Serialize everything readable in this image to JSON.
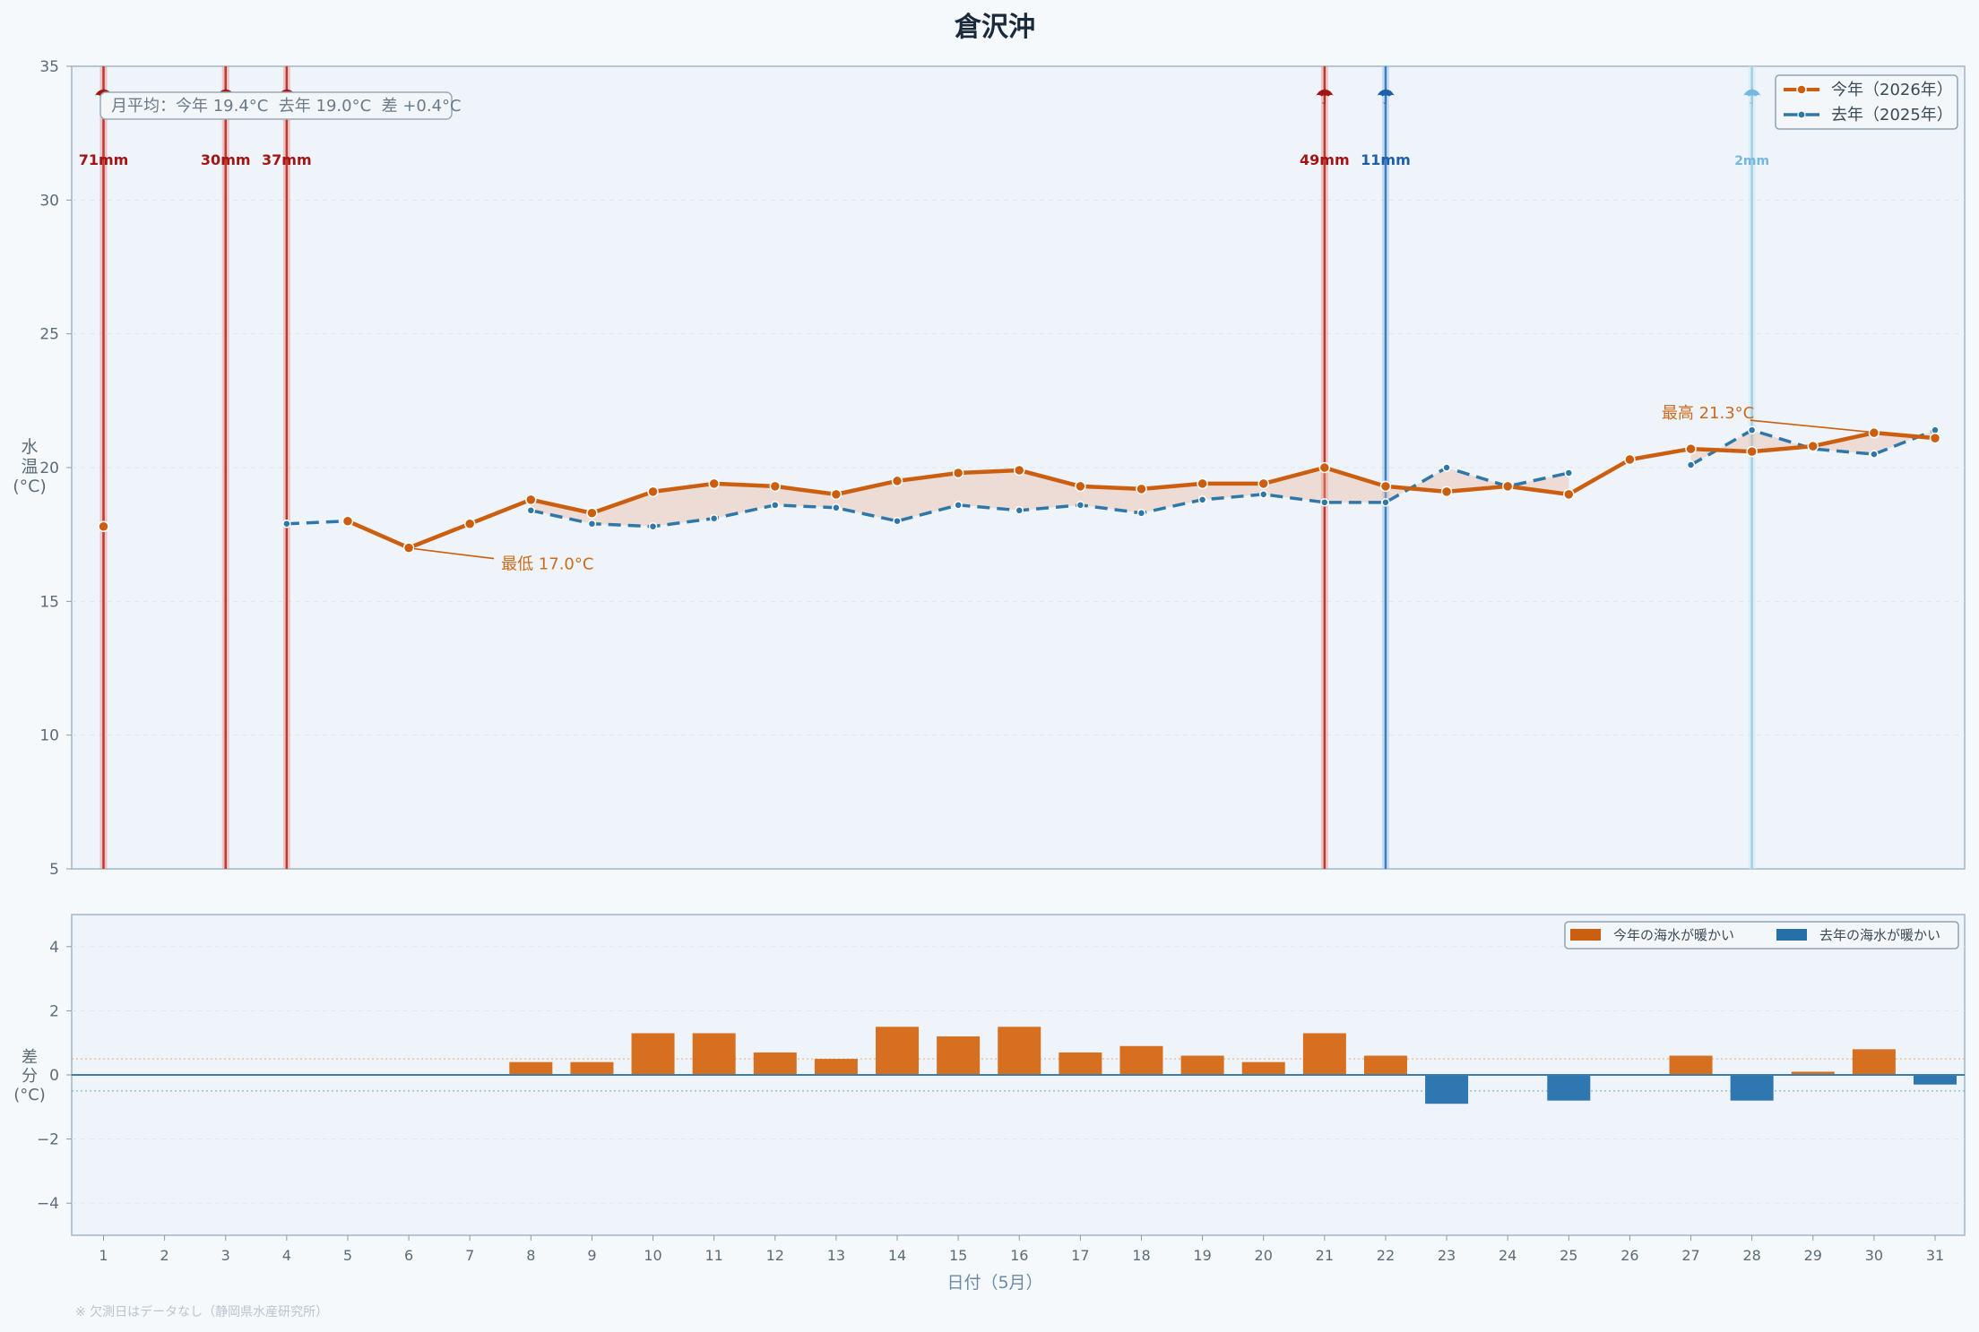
{
  "chart_data": [
    {
      "type": "line",
      "title": "倉沢沖",
      "ylabel": "水温\n(°C)",
      "ylim": [
        5,
        35
      ],
      "yticks": [
        5,
        10,
        15,
        20,
        25,
        30,
        35
      ],
      "x": [
        1,
        2,
        3,
        4,
        5,
        6,
        7,
        8,
        9,
        10,
        11,
        12,
        13,
        14,
        15,
        16,
        17,
        18,
        19,
        20,
        21,
        22,
        23,
        24,
        25,
        26,
        27,
        28,
        29,
        30,
        31
      ],
      "series": [
        {
          "name": "今年（2026年）",
          "color": "#cc5e10",
          "values": [
            17.8,
            null,
            null,
            null,
            18.0,
            17.0,
            17.9,
            18.8,
            18.3,
            19.1,
            19.4,
            19.3,
            19.0,
            19.5,
            19.8,
            19.9,
            19.3,
            19.2,
            19.4,
            19.4,
            20.0,
            19.3,
            19.1,
            19.3,
            19.0,
            20.3,
            20.7,
            20.6,
            20.8,
            21.3,
            21.1
          ]
        },
        {
          "name": "去年（2025年）",
          "color": "#2f77a8",
          "values": [
            null,
            null,
            null,
            17.9,
            18.0,
            null,
            null,
            18.4,
            17.9,
            17.8,
            18.1,
            18.6,
            18.5,
            18.0,
            18.6,
            18.4,
            18.6,
            18.3,
            18.8,
            19.0,
            18.7,
            18.7,
            20.0,
            19.3,
            19.8,
            null,
            20.1,
            21.4,
            20.7,
            20.5,
            21.4
          ]
        }
      ],
      "rain_markers": [
        {
          "day": 1,
          "label": "71mm",
          "year": "2026"
        },
        {
          "day": 3,
          "label": "30mm",
          "year": "2026"
        },
        {
          "day": 4,
          "label": "37mm",
          "year": "2026"
        },
        {
          "day": 21,
          "label": "49mm",
          "year": "2026"
        },
        {
          "day": 22,
          "label": "11mm",
          "year": "2025"
        },
        {
          "day": 28,
          "label": "2mm",
          "year": "2025-light"
        }
      ],
      "annotations": [
        {
          "text": "月平均：今年 19.4°C  去年 19.0°C  差 +0.4°C"
        },
        {
          "text": "最低 17.0°C",
          "day": 6,
          "value": 17.0
        },
        {
          "text": "最高 21.3°C",
          "day": 30,
          "value": 21.3
        }
      ],
      "legend": "top-right",
      "grid": true
    },
    {
      "type": "bar",
      "ylabel": "差\n分\n(°C)",
      "xlabel": "日付（5月）",
      "ylim": [
        -5,
        5
      ],
      "yticks": [
        -4,
        -2,
        0,
        2,
        4
      ],
      "ytick_labels": [
        "−4",
        "−2",
        "0",
        "2",
        "4"
      ],
      "categories": [
        "1",
        "2",
        "3",
        "4",
        "5",
        "6",
        "7",
        "8",
        "9",
        "10",
        "11",
        "12",
        "13",
        "14",
        "15",
        "16",
        "17",
        "18",
        "19",
        "20",
        "21",
        "22",
        "23",
        "24",
        "25",
        "26",
        "27",
        "28",
        "29",
        "30",
        "31"
      ],
      "values": [
        null,
        null,
        null,
        null,
        0.0,
        null,
        null,
        0.4,
        0.4,
        1.3,
        1.3,
        0.7,
        0.5,
        1.5,
        1.2,
        1.5,
        0.7,
        0.9,
        0.6,
        0.4,
        1.3,
        0.6,
        -0.9,
        0.0,
        -0.8,
        null,
        0.6,
        -0.8,
        0.1,
        0.8,
        -0.3
      ],
      "positive_color": "#d66f1f",
      "negative_color": "#2f77b0",
      "legend_entries": [
        "今年の海水が暖かい",
        "去年の海水が暖かい"
      ],
      "legend": "top-right",
      "grid": true
    }
  ],
  "footnote": "※ 欠測日はデータなし（静岡県水産研究所）"
}
